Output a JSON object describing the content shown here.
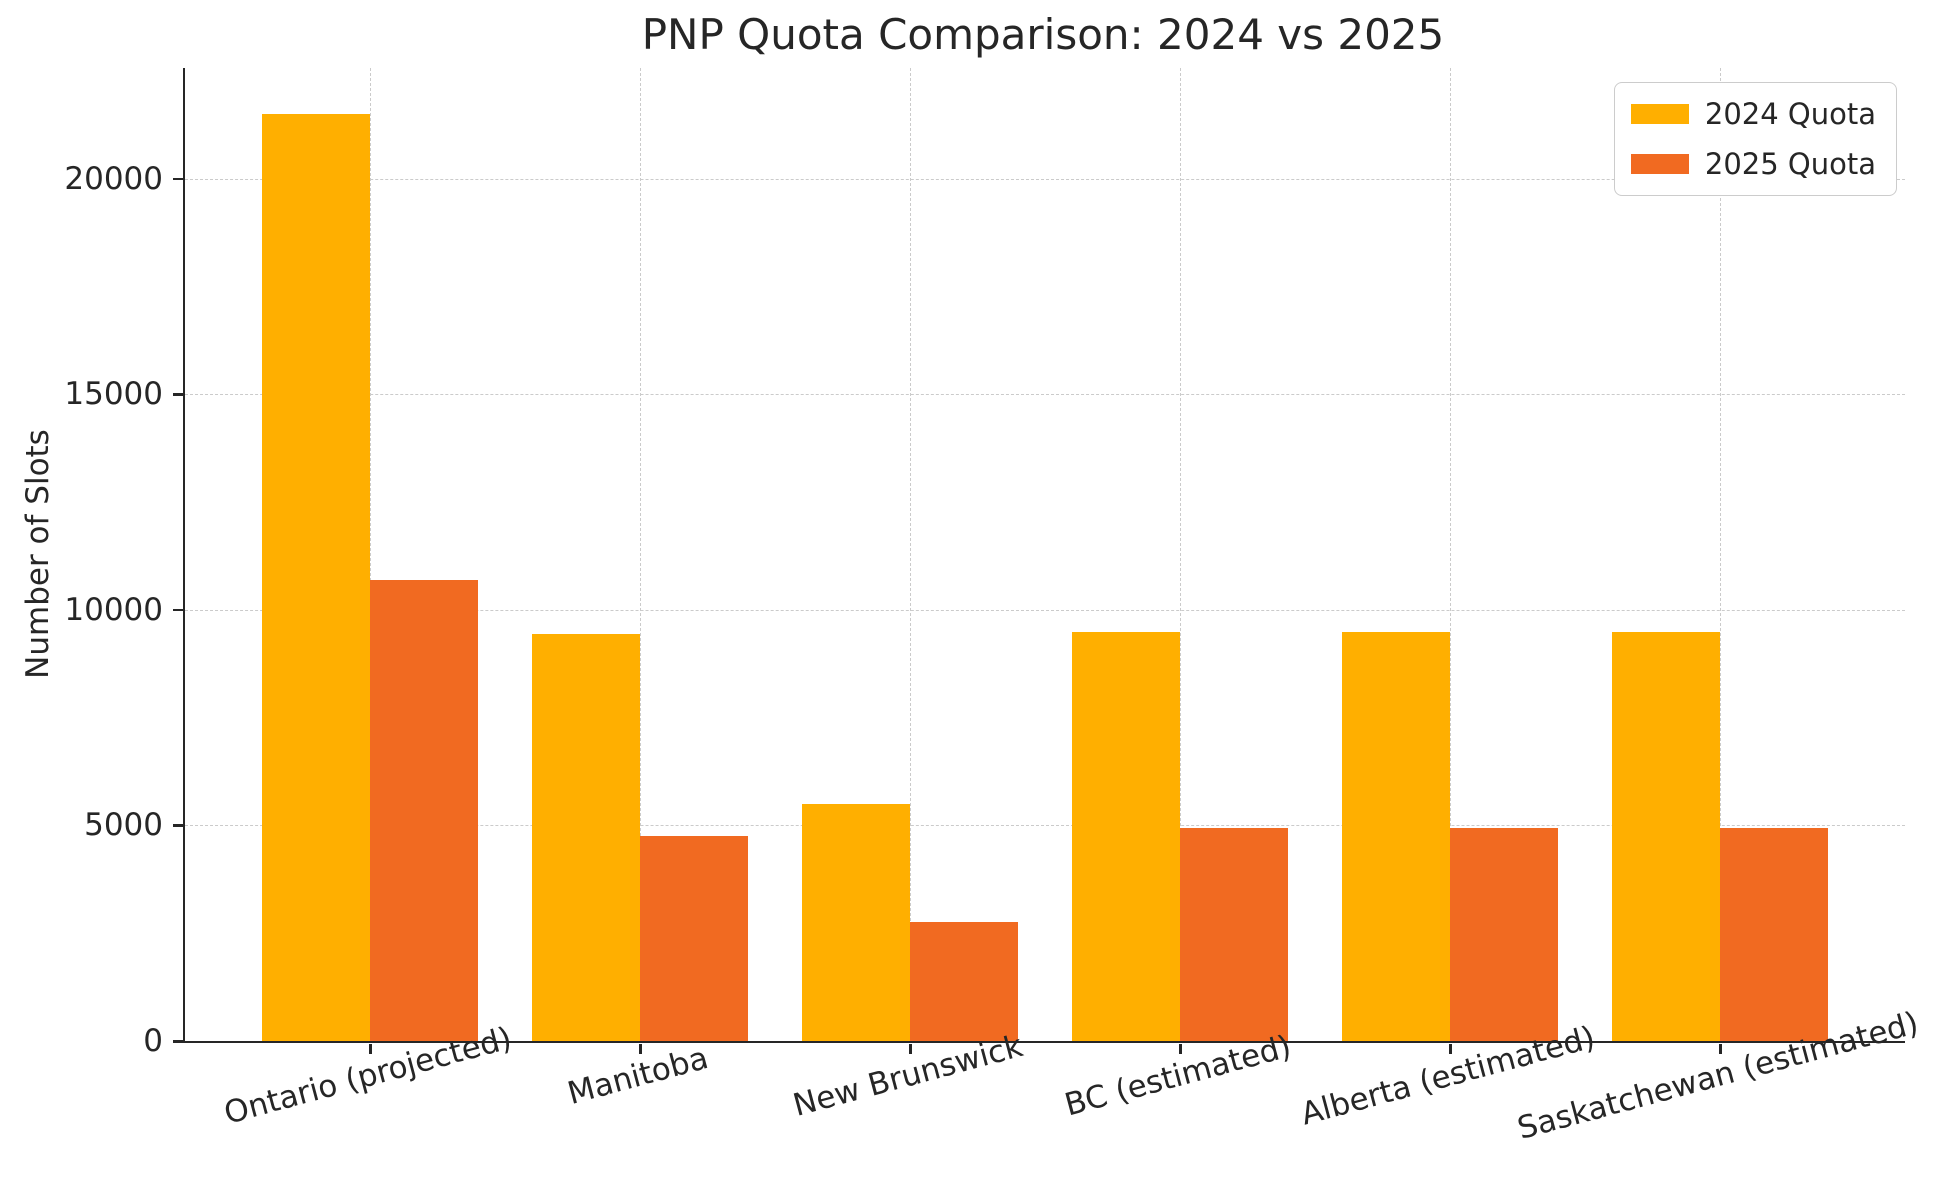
{
  "title": "PNP Quota Comparison: 2024 vs 2025",
  "chart_data": {
    "type": "bar",
    "title": "PNP Quota Comparison: 2024 vs 2025",
    "xlabel": "",
    "ylabel": "Number of Slots",
    "categories": [
      "Ontario (projected)",
      "Manitoba",
      "New Brunswick",
      "BC (estimated)",
      "Alberta (estimated)",
      "Saskatchewan (estimated)"
    ],
    "series": [
      {
        "name": "2024 Quota",
        "color": "#FFAF00",
        "values": [
          21500,
          9450,
          5500,
          9500,
          9500,
          9500
        ]
      },
      {
        "name": "2025 Quota",
        "color": "#F16A21",
        "values": [
          10700,
          4750,
          2750,
          4950,
          4950,
          4950
        ]
      }
    ],
    "yticks": [
      0,
      5000,
      10000,
      15000,
      20000
    ],
    "ylim": [
      0,
      22575
    ],
    "grid": "dashed gridlines on both axes",
    "legend_position": "upper right",
    "colors": {
      "background": "#ffffff",
      "grid": "#cbcbcb",
      "axis": "#262626",
      "text": "#262626"
    }
  }
}
